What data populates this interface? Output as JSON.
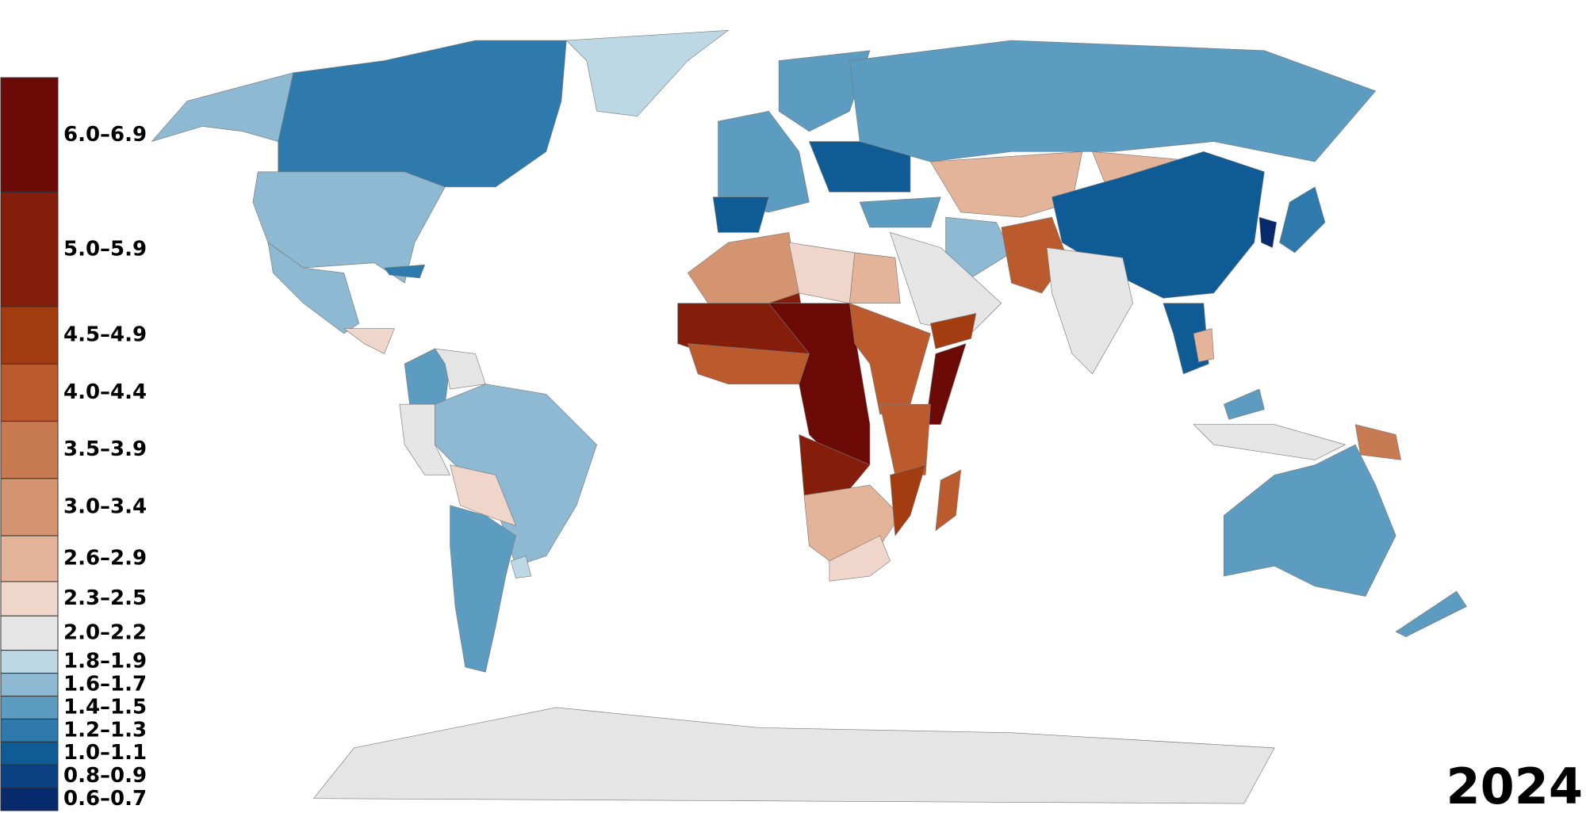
{
  "title_year": "2024",
  "legend": [
    {
      "label": "6.0–6.9",
      "color": "#6b0a07"
    },
    {
      "label": "5.0–5.9",
      "color": "#841e0a"
    },
    {
      "label": "4.5–4.9",
      "color": "#a33c10"
    },
    {
      "label": "4.0–4.4",
      "color": "#bb5a2c"
    },
    {
      "label": "3.5–3.9",
      "color": "#c87a52"
    },
    {
      "label": "3.0–3.4",
      "color": "#d49470"
    },
    {
      "label": "2.6–2.9",
      "color": "#e3b49a"
    },
    {
      "label": "2.3–2.5",
      "color": "#f0d6ca"
    },
    {
      "label": "2.0–2.2",
      "color": "#e5e5e5"
    },
    {
      "label": "1.8–1.9",
      "color": "#bcd8e5"
    },
    {
      "label": "1.6–1.7",
      "color": "#8db9d2"
    },
    {
      "label": "1.4–1.5",
      "color": "#5b9cc0"
    },
    {
      "label": "1.2–1.3",
      "color": "#2f7aac"
    },
    {
      "label": "1.0–1.1",
      "color": "#0f5b95"
    },
    {
      "label": "0.8–0.9",
      "color": "#0b4082"
    },
    {
      "label": "0.6–0.7",
      "color": "#062a6c"
    }
  ]
}
